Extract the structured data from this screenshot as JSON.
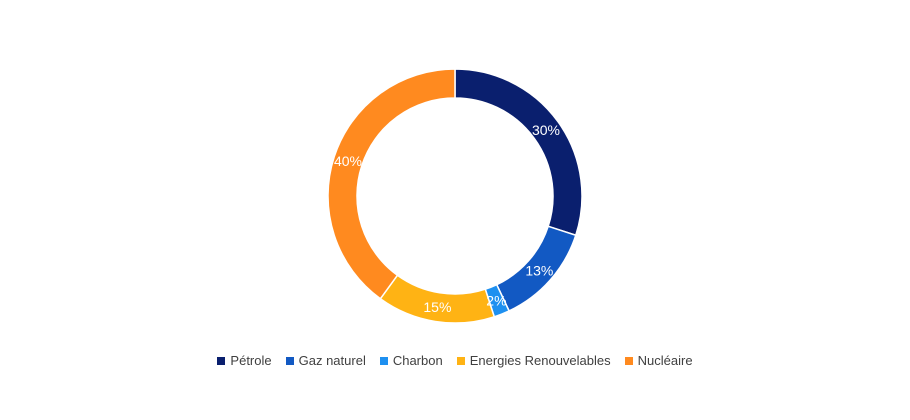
{
  "chart_data": {
    "type": "pie",
    "variant": "donut",
    "title": "",
    "categories": [
      "Pétrole",
      "Gaz naturel",
      "Charbon",
      "Energies Renouvelables",
      "Nucléaire"
    ],
    "values": [
      30,
      13,
      2,
      15,
      40
    ],
    "labels": [
      "30%",
      "13%",
      "2%",
      "15%",
      "40%"
    ],
    "colors": [
      "#0a1f6e",
      "#1259c3",
      "#1e90f0",
      "#ffb314",
      "#ff8a1f"
    ],
    "legend_position": "bottom"
  }
}
